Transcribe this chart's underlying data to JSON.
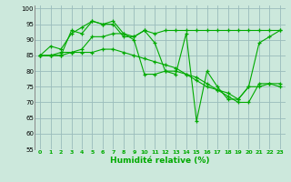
{
  "line1": [
    85,
    88,
    87,
    92,
    94,
    96,
    95,
    95,
    91,
    91,
    93,
    92,
    93,
    93,
    93,
    93,
    93,
    93,
    93,
    93,
    93,
    93,
    93,
    93
  ],
  "line2": [
    85,
    85,
    86,
    86,
    87,
    91,
    91,
    92,
    92,
    90,
    79,
    79,
    80,
    80,
    79,
    77,
    75,
    74,
    73,
    71,
    75,
    75,
    76,
    75
  ],
  "line3": [
    85,
    85,
    85,
    93,
    92,
    96,
    95,
    96,
    92,
    91,
    93,
    89,
    80,
    79,
    92,
    64,
    80,
    75,
    71,
    71,
    75,
    89,
    91,
    93
  ],
  "line4": [
    85,
    85,
    85,
    86,
    86,
    86,
    87,
    87,
    86,
    85,
    84,
    83,
    82,
    81,
    79,
    78,
    76,
    74,
    72,
    70,
    70,
    76,
    76,
    76
  ],
  "xlabel": "Humidité relative (%)",
  "xlim": [
    -0.5,
    23.5
  ],
  "ylim": [
    55,
    101
  ],
  "yticks": [
    55,
    60,
    65,
    70,
    75,
    80,
    85,
    90,
    95,
    100
  ],
  "xticks": [
    0,
    1,
    2,
    3,
    4,
    5,
    6,
    7,
    8,
    9,
    10,
    11,
    12,
    13,
    14,
    15,
    16,
    17,
    18,
    19,
    20,
    21,
    22,
    23
  ],
  "line_color": "#00aa00",
  "bg_color": "#cce8dc",
  "grid_color": "#99bbbb",
  "marker": "+"
}
